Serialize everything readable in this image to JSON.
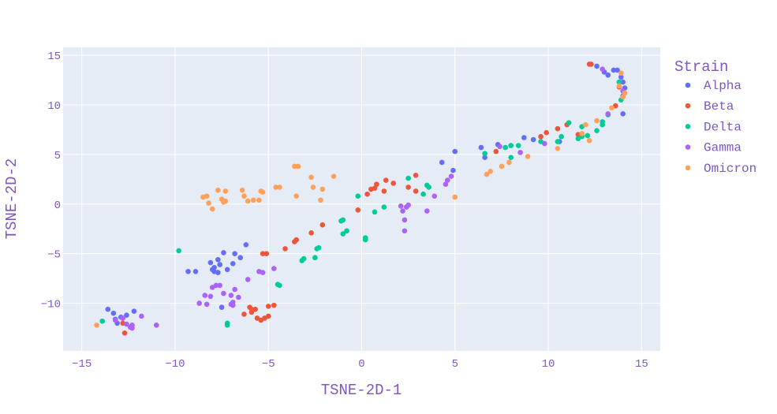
{
  "chart_data": {
    "type": "scatter",
    "xlabel": "TSNE-2D-1",
    "ylabel": "TSNE-2D-2",
    "xlim": [
      -16.0,
      16.0
    ],
    "ylim": [
      -14.8,
      15.8
    ],
    "x_ticks": [
      -15,
      -10,
      -5,
      0,
      5,
      10,
      15
    ],
    "y_ticks": [
      -10,
      -5,
      0,
      5,
      10,
      15
    ],
    "x_tick_labels": [
      "−15",
      "−10",
      "−5",
      "0",
      "5",
      "10",
      "15"
    ],
    "y_tick_labels": [
      "−10",
      "−5",
      "0",
      "5",
      "10",
      "15"
    ],
    "grid": true,
    "legend_title": "Strain",
    "legend_position": "right",
    "colors": {
      "background": "#e5ecf6",
      "grid": "#ffffff",
      "text": "#7e57c2"
    },
    "series": [
      {
        "name": "Alpha",
        "color": "#636efa",
        "points": [
          [
            -13.6,
            -10.6
          ],
          [
            -13.3,
            -11.0
          ],
          [
            -13.2,
            -11.6
          ],
          [
            -12.9,
            -11.4
          ],
          [
            -12.6,
            -11.2
          ],
          [
            -12.2,
            -10.8
          ],
          [
            -13.1,
            -12.0
          ],
          [
            -9.3,
            -6.8
          ],
          [
            -8.9,
            -6.8
          ],
          [
            -8.1,
            -5.9
          ],
          [
            -7.9,
            -6.4
          ],
          [
            -7.7,
            -5.6
          ],
          [
            -7.6,
            -6.1
          ],
          [
            -7.9,
            -6.8
          ],
          [
            -7.7,
            -6.9
          ],
          [
            -7.4,
            -4.9
          ],
          [
            -7.2,
            -6.6
          ],
          [
            -6.9,
            -6.0
          ],
          [
            -6.8,
            -5.0
          ],
          [
            -6.5,
            -5.4
          ],
          [
            -6.2,
            -4.1
          ],
          [
            -7.5,
            -10.4
          ],
          [
            -8.0,
            -6.6
          ],
          [
            4.3,
            4.2
          ],
          [
            4.9,
            3.4
          ],
          [
            5.0,
            5.3
          ],
          [
            6.4,
            5.7
          ],
          [
            6.6,
            4.7
          ],
          [
            7.3,
            6.0
          ],
          [
            8.7,
            6.7
          ],
          [
            9.2,
            6.5
          ],
          [
            10.6,
            6.3
          ],
          [
            12.6,
            13.9
          ],
          [
            13.0,
            13.3
          ],
          [
            13.2,
            13.0
          ],
          [
            13.5,
            13.5
          ],
          [
            13.7,
            13.5
          ],
          [
            13.9,
            12.8
          ],
          [
            14.0,
            12.3
          ],
          [
            14.1,
            11.7
          ],
          [
            14.0,
            10.9
          ],
          [
            14.0,
            9.1
          ]
        ]
      },
      {
        "name": "Beta",
        "color": "#ef553b",
        "points": [
          [
            -12.8,
            -12.0
          ],
          [
            -12.7,
            -13.0
          ],
          [
            -6.0,
            -10.4
          ],
          [
            -5.9,
            -10.6
          ],
          [
            -5.7,
            -10.6
          ],
          [
            -5.9,
            -10.9
          ],
          [
            -6.3,
            -11.1
          ],
          [
            -5.6,
            -11.5
          ],
          [
            -5.4,
            -11.7
          ],
          [
            -5.2,
            -11.5
          ],
          [
            -5.0,
            -11.3
          ],
          [
            -5.0,
            -10.3
          ],
          [
            -4.7,
            -10.2
          ],
          [
            -5.3,
            -5.0
          ],
          [
            -5.1,
            -5.0
          ],
          [
            -4.1,
            -4.5
          ],
          [
            -3.6,
            -3.8
          ],
          [
            -3.5,
            -3.6
          ],
          [
            -2.7,
            -2.9
          ],
          [
            -2.1,
            -2.1
          ],
          [
            -0.2,
            -0.6
          ],
          [
            0.3,
            1.0
          ],
          [
            0.5,
            1.5
          ],
          [
            0.7,
            1.6
          ],
          [
            0.8,
            2.0
          ],
          [
            1.2,
            1.3
          ],
          [
            1.3,
            2.4
          ],
          [
            1.7,
            2.1
          ],
          [
            2.5,
            1.7
          ],
          [
            2.9,
            1.3
          ],
          [
            2.9,
            2.9
          ],
          [
            7.2,
            5.3
          ],
          [
            9.6,
            6.8
          ],
          [
            9.9,
            7.2
          ],
          [
            10.5,
            7.6
          ],
          [
            11.0,
            8.0
          ],
          [
            11.6,
            7.0
          ],
          [
            11.8,
            6.9
          ],
          [
            12.2,
            14.1
          ],
          [
            12.3,
            14.1
          ],
          [
            13.6,
            9.9
          ],
          [
            13.8,
            11.8
          ]
        ]
      },
      {
        "name": "Delta",
        "color": "#00cc96",
        "points": [
          [
            -13.9,
            -11.8
          ],
          [
            -9.8,
            -4.7
          ],
          [
            -7.2,
            -12.0
          ],
          [
            -7.2,
            -12.2
          ],
          [
            -4.5,
            -8.1
          ],
          [
            -4.4,
            -8.2
          ],
          [
            -3.2,
            -5.7
          ],
          [
            -3.1,
            -5.5
          ],
          [
            -2.5,
            -5.4
          ],
          [
            -2.4,
            -4.5
          ],
          [
            -2.3,
            -4.4
          ],
          [
            -1.1,
            -1.7
          ],
          [
            -1.0,
            -1.6
          ],
          [
            -1.0,
            -3.0
          ],
          [
            -0.8,
            -2.7
          ],
          [
            -0.2,
            0.8
          ],
          [
            0.2,
            -3.4
          ],
          [
            0.2,
            -3.6
          ],
          [
            0.7,
            -0.8
          ],
          [
            1.2,
            -0.3
          ],
          [
            2.5,
            2.6
          ],
          [
            3.3,
            1.0
          ],
          [
            3.5,
            1.9
          ],
          [
            3.6,
            1.7
          ],
          [
            6.6,
            5.1
          ],
          [
            7.7,
            5.7
          ],
          [
            8.0,
            5.9
          ],
          [
            8.0,
            4.7
          ],
          [
            8.4,
            5.9
          ],
          [
            9.6,
            6.3
          ],
          [
            10.5,
            6.3
          ],
          [
            10.7,
            6.8
          ],
          [
            11.1,
            8.2
          ],
          [
            11.6,
            6.6
          ],
          [
            11.8,
            6.8
          ],
          [
            11.8,
            7.8
          ],
          [
            12.1,
            6.9
          ],
          [
            12.6,
            7.4
          ],
          [
            12.9,
            8.0
          ],
          [
            12.9,
            8.3
          ],
          [
            13.2,
            9.0
          ],
          [
            13.8,
            12.3
          ],
          [
            13.9,
            10.5
          ]
        ]
      },
      {
        "name": "Gamma",
        "color": "#ab63fa",
        "points": [
          [
            -13.2,
            -11.7
          ],
          [
            -12.8,
            -11.5
          ],
          [
            -12.6,
            -12.1
          ],
          [
            -12.4,
            -12.4
          ],
          [
            -12.3,
            -12.2
          ],
          [
            -12.3,
            -12.5
          ],
          [
            -11.8,
            -11.3
          ],
          [
            -11.0,
            -12.2
          ],
          [
            -8.7,
            -10.0
          ],
          [
            -8.4,
            -9.2
          ],
          [
            -8.3,
            -10.1
          ],
          [
            -8.1,
            -9.3
          ],
          [
            -8.0,
            -8.4
          ],
          [
            -7.8,
            -8.2
          ],
          [
            -7.6,
            -8.2
          ],
          [
            -7.4,
            -9.0
          ],
          [
            -7.0,
            -9.2
          ],
          [
            -6.8,
            -8.6
          ],
          [
            -6.9,
            -10.2
          ],
          [
            -7.0,
            -10.1
          ],
          [
            -6.9,
            -9.9
          ],
          [
            -6.6,
            -9.4
          ],
          [
            -6.1,
            -7.6
          ],
          [
            -5.5,
            -6.8
          ],
          [
            -5.3,
            -6.9
          ],
          [
            -4.7,
            -6.5
          ],
          [
            2.1,
            -0.2
          ],
          [
            2.2,
            -0.7
          ],
          [
            2.3,
            -1.6
          ],
          [
            2.3,
            -2.7
          ],
          [
            2.4,
            -0.3
          ],
          [
            2.5,
            -0.1
          ],
          [
            3.5,
            -0.7
          ],
          [
            3.9,
            0.8
          ],
          [
            4.5,
            2.0
          ],
          [
            4.6,
            2.4
          ],
          [
            4.8,
            2.8
          ],
          [
            7.4,
            5.8
          ],
          [
            8.5,
            5.2
          ],
          [
            9.8,
            6.1
          ],
          [
            12.9,
            13.6
          ],
          [
            13.2,
            9.1
          ],
          [
            14.0,
            11.4
          ]
        ]
      },
      {
        "name": "Omicron",
        "color": "#ffa15a",
        "points": [
          [
            -14.2,
            -12.2
          ],
          [
            -8.5,
            0.7
          ],
          [
            -8.3,
            0.8
          ],
          [
            -8.2,
            0.1
          ],
          [
            -8.0,
            -0.5
          ],
          [
            -7.7,
            1.4
          ],
          [
            -7.5,
            0.5
          ],
          [
            -7.4,
            0.2
          ],
          [
            -7.3,
            0.3
          ],
          [
            -7.3,
            1.3
          ],
          [
            -6.4,
            1.4
          ],
          [
            -6.3,
            0.8
          ],
          [
            -6.1,
            0.3
          ],
          [
            -5.8,
            0.4
          ],
          [
            -5.5,
            0.4
          ],
          [
            -5.4,
            1.3
          ],
          [
            -5.3,
            1.2
          ],
          [
            -4.6,
            1.7
          ],
          [
            -4.4,
            1.7
          ],
          [
            -3.6,
            3.8
          ],
          [
            -3.4,
            3.8
          ],
          [
            -3.5,
            0.8
          ],
          [
            -2.7,
            2.7
          ],
          [
            -2.6,
            1.7
          ],
          [
            -2.1,
            1.5
          ],
          [
            -2.2,
            0.4
          ],
          [
            -1.5,
            2.8
          ],
          [
            5.0,
            0.7
          ],
          [
            6.7,
            3.0
          ],
          [
            6.9,
            3.3
          ],
          [
            7.5,
            3.8
          ],
          [
            7.9,
            4.2
          ],
          [
            8.9,
            4.8
          ],
          [
            10.5,
            5.6
          ],
          [
            11.8,
            7.1
          ],
          [
            12.0,
            8.0
          ],
          [
            12.2,
            6.4
          ],
          [
            12.6,
            8.4
          ],
          [
            13.9,
            13.2
          ],
          [
            14.0,
            10.8
          ],
          [
            13.8,
            11.9
          ],
          [
            13.4,
            9.7
          ],
          [
            14.1,
            11.2
          ]
        ]
      }
    ]
  }
}
